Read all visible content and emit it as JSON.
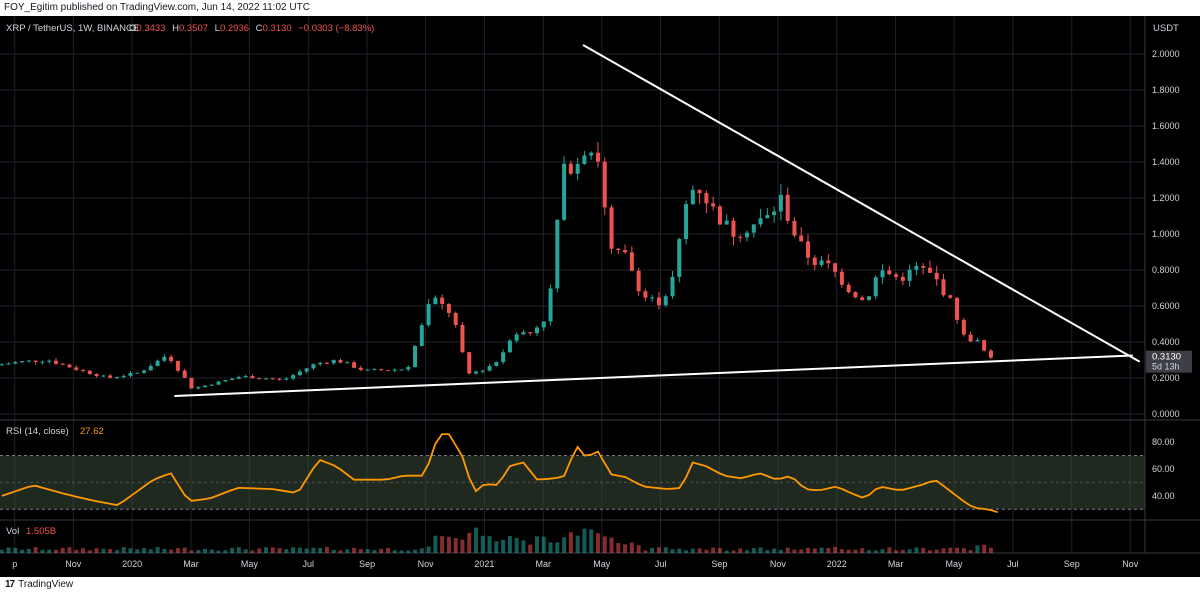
{
  "header": {
    "published_text": "FOY_Egitim published on TradingView.com, Jun 14, 2022 11:02 UTC"
  },
  "footer": {
    "logo_text": "TradingView"
  },
  "legend": {
    "pair": "XRP / TetherUS, 1W, BINANCE",
    "o_label": "O",
    "o_value": "0.3433",
    "h_label": "H",
    "h_value": "0.3507",
    "l_label": "L",
    "l_value": "0.2936",
    "c_label": "C",
    "c_value": "0.3130",
    "change": "−0.0303 (−8.83%)"
  },
  "colors": {
    "up": "#26a69a",
    "down": "#ef5350",
    "rsi_line": "#ff9800",
    "trendline": "#ffffff",
    "grid": "#1e222d",
    "axis_text": "#d1d4dc"
  },
  "chart_data": {
    "type": "candlestick",
    "title": "XRP / TetherUS, 1W, BINANCE",
    "currency_label": "USDT",
    "price_axis": {
      "ylim": [
        0,
        2.1
      ],
      "ticks": [
        0.0,
        0.2,
        0.4,
        0.6,
        0.8,
        1.0,
        1.2,
        1.4,
        1.6,
        1.8,
        2.0
      ],
      "tick_labels": [
        "0.0000",
        "0.2000",
        "0.4000",
        "0.6000",
        "0.8000",
        "1.0000",
        "1.2000",
        "1.4000",
        "1.6000",
        "1.8000",
        "2.0000"
      ]
    },
    "last_price_label": "0.3130",
    "countdown_label": "5d 13h",
    "time_axis": {
      "range_months": [
        2019.625,
        2022.875
      ],
      "ticks": [
        {
          "t": 2019.667,
          "label": "p"
        },
        {
          "t": 2019.833,
          "label": "Nov"
        },
        {
          "t": 2020.0,
          "label": "2020"
        },
        {
          "t": 2020.167,
          "label": "Mar"
        },
        {
          "t": 2020.333,
          "label": "May"
        },
        {
          "t": 2020.5,
          "label": "Jul"
        },
        {
          "t": 2020.667,
          "label": "Sep"
        },
        {
          "t": 2020.833,
          "label": "Nov"
        },
        {
          "t": 2021.0,
          "label": "2021"
        },
        {
          "t": 2021.167,
          "label": "Mar"
        },
        {
          "t": 2021.333,
          "label": "May"
        },
        {
          "t": 2021.5,
          "label": "Jul"
        },
        {
          "t": 2021.667,
          "label": "Sep"
        },
        {
          "t": 2021.833,
          "label": "Nov"
        },
        {
          "t": 2022.0,
          "label": "2022"
        },
        {
          "t": 2022.167,
          "label": "Mar"
        },
        {
          "t": 2022.333,
          "label": "May"
        },
        {
          "t": 2022.5,
          "label": "Jul"
        },
        {
          "t": 2022.667,
          "label": "Sep"
        },
        {
          "t": 2022.833,
          "label": "Nov"
        }
      ]
    },
    "anchors": [
      {
        "t": 2019.63,
        "p": 0.27
      },
      {
        "t": 2019.7,
        "p": 0.29
      },
      {
        "t": 2019.78,
        "p": 0.3
      },
      {
        "t": 2019.86,
        "p": 0.25
      },
      {
        "t": 2019.95,
        "p": 0.2
      },
      {
        "t": 2020.04,
        "p": 0.23
      },
      {
        "t": 2020.12,
        "p": 0.33
      },
      {
        "t": 2020.19,
        "p": 0.14
      },
      {
        "t": 2020.27,
        "p": 0.18
      },
      {
        "t": 2020.33,
        "p": 0.21
      },
      {
        "t": 2020.45,
        "p": 0.19
      },
      {
        "t": 2020.54,
        "p": 0.28
      },
      {
        "t": 2020.6,
        "p": 0.3
      },
      {
        "t": 2020.68,
        "p": 0.24
      },
      {
        "t": 2020.8,
        "p": 0.25
      },
      {
        "t": 2020.87,
        "p": 0.65
      },
      {
        "t": 2020.93,
        "p": 0.55
      },
      {
        "t": 2020.97,
        "p": 0.22
      },
      {
        "t": 2021.02,
        "p": 0.25
      },
      {
        "t": 2021.06,
        "p": 0.3
      },
      {
        "t": 2021.1,
        "p": 0.45
      },
      {
        "t": 2021.15,
        "p": 0.45
      },
      {
        "t": 2021.2,
        "p": 0.55
      },
      {
        "t": 2021.24,
        "p": 1.35
      },
      {
        "t": 2021.28,
        "p": 1.4
      },
      {
        "t": 2021.31,
        "p": 1.5
      },
      {
        "t": 2021.35,
        "p": 1.4
      },
      {
        "t": 2021.37,
        "p": 0.9
      },
      {
        "t": 2021.42,
        "p": 0.88
      },
      {
        "t": 2021.47,
        "p": 0.65
      },
      {
        "t": 2021.52,
        "p": 0.62
      },
      {
        "t": 2021.55,
        "p": 0.72
      },
      {
        "t": 2021.6,
        "p": 1.25
      },
      {
        "t": 2021.63,
        "p": 1.25
      },
      {
        "t": 2021.68,
        "p": 1.1
      },
      {
        "t": 2021.73,
        "p": 1.0
      },
      {
        "t": 2021.78,
        "p": 1.05
      },
      {
        "t": 2021.83,
        "p": 1.1
      },
      {
        "t": 2021.86,
        "p": 1.2
      },
      {
        "t": 2021.91,
        "p": 0.95
      },
      {
        "t": 2021.95,
        "p": 0.85
      },
      {
        "t": 2022.0,
        "p": 0.82
      },
      {
        "t": 2022.05,
        "p": 0.7
      },
      {
        "t": 2022.1,
        "p": 0.62
      },
      {
        "t": 2022.14,
        "p": 0.8
      },
      {
        "t": 2022.2,
        "p": 0.75
      },
      {
        "t": 2022.25,
        "p": 0.82
      },
      {
        "t": 2022.3,
        "p": 0.75
      },
      {
        "t": 2022.35,
        "p": 0.6
      },
      {
        "t": 2022.38,
        "p": 0.43
      },
      {
        "t": 2022.42,
        "p": 0.4
      },
      {
        "t": 2022.45,
        "p": 0.313
      }
    ],
    "trendlines": [
      {
        "name": "upper-resistance",
        "from": {
          "t": 2021.28,
          "p": 2.05
        },
        "to": {
          "t": 2022.86,
          "p": 0.29
        }
      },
      {
        "name": "lower-support",
        "from": {
          "t": 2020.12,
          "p": 0.1
        },
        "to": {
          "t": 2022.84,
          "p": 0.325
        }
      }
    ],
    "rsi": {
      "label": "RSI (14, close)",
      "value_label": "27.62",
      "ylim": [
        25,
        92
      ],
      "band": [
        30,
        70
      ],
      "mid": 50,
      "ticks": [
        40,
        60,
        80
      ],
      "tick_labels": [
        "40.00",
        "60.00",
        "80.00"
      ],
      "anchors": [
        {
          "t": 2019.63,
          "v": 40
        },
        {
          "t": 2019.72,
          "v": 48
        },
        {
          "t": 2019.8,
          "v": 42
        },
        {
          "t": 2019.88,
          "v": 37
        },
        {
          "t": 2019.96,
          "v": 33
        },
        {
          "t": 2020.06,
          "v": 52
        },
        {
          "t": 2020.11,
          "v": 57
        },
        {
          "t": 2020.16,
          "v": 36
        },
        {
          "t": 2020.22,
          "v": 38
        },
        {
          "t": 2020.3,
          "v": 46
        },
        {
          "t": 2020.4,
          "v": 45
        },
        {
          "t": 2020.47,
          "v": 42
        },
        {
          "t": 2020.53,
          "v": 67
        },
        {
          "t": 2020.58,
          "v": 62
        },
        {
          "t": 2020.63,
          "v": 52
        },
        {
          "t": 2020.72,
          "v": 52
        },
        {
          "t": 2020.77,
          "v": 55
        },
        {
          "t": 2020.83,
          "v": 55
        },
        {
          "t": 2020.87,
          "v": 86
        },
        {
          "t": 2020.9,
          "v": 86
        },
        {
          "t": 2020.94,
          "v": 68
        },
        {
          "t": 2020.97,
          "v": 42
        },
        {
          "t": 2021.0,
          "v": 49
        },
        {
          "t": 2021.04,
          "v": 48
        },
        {
          "t": 2021.07,
          "v": 62
        },
        {
          "t": 2021.11,
          "v": 65
        },
        {
          "t": 2021.15,
          "v": 52
        },
        {
          "t": 2021.2,
          "v": 53
        },
        {
          "t": 2021.23,
          "v": 55
        },
        {
          "t": 2021.26,
          "v": 78
        },
        {
          "t": 2021.29,
          "v": 68
        },
        {
          "t": 2021.32,
          "v": 74
        },
        {
          "t": 2021.36,
          "v": 56
        },
        {
          "t": 2021.4,
          "v": 54
        },
        {
          "t": 2021.45,
          "v": 47
        },
        {
          "t": 2021.52,
          "v": 45
        },
        {
          "t": 2021.56,
          "v": 46
        },
        {
          "t": 2021.59,
          "v": 65
        },
        {
          "t": 2021.63,
          "v": 62
        },
        {
          "t": 2021.68,
          "v": 55
        },
        {
          "t": 2021.73,
          "v": 53
        },
        {
          "t": 2021.78,
          "v": 57
        },
        {
          "t": 2021.83,
          "v": 52
        },
        {
          "t": 2021.87,
          "v": 55
        },
        {
          "t": 2021.91,
          "v": 45
        },
        {
          "t": 2021.95,
          "v": 44
        },
        {
          "t": 2022.0,
          "v": 47
        },
        {
          "t": 2022.04,
          "v": 42
        },
        {
          "t": 2022.08,
          "v": 38
        },
        {
          "t": 2022.12,
          "v": 47
        },
        {
          "t": 2022.18,
          "v": 44
        },
        {
          "t": 2022.24,
          "v": 48
        },
        {
          "t": 2022.28,
          "v": 52
        },
        {
          "t": 2022.32,
          "v": 44
        },
        {
          "t": 2022.36,
          "v": 36
        },
        {
          "t": 2022.39,
          "v": 31
        },
        {
          "t": 2022.43,
          "v": 30
        },
        {
          "t": 2022.46,
          "v": 27.62
        }
      ]
    },
    "volume": {
      "label": "Vol",
      "value_label": "1.505B",
      "bursts": [
        {
          "t": 2020.87,
          "v": 0.75
        },
        {
          "t": 2020.9,
          "v": 0.55
        },
        {
          "t": 2020.97,
          "v": 1.0
        },
        {
          "t": 2021.02,
          "v": 0.6
        },
        {
          "t": 2021.08,
          "v": 0.7
        },
        {
          "t": 2021.24,
          "v": 0.8
        },
        {
          "t": 2021.28,
          "v": 0.9
        },
        {
          "t": 2021.31,
          "v": 0.95
        },
        {
          "t": 2021.35,
          "v": 0.7
        },
        {
          "t": 2022.41,
          "v": 0.35
        }
      ]
    }
  }
}
